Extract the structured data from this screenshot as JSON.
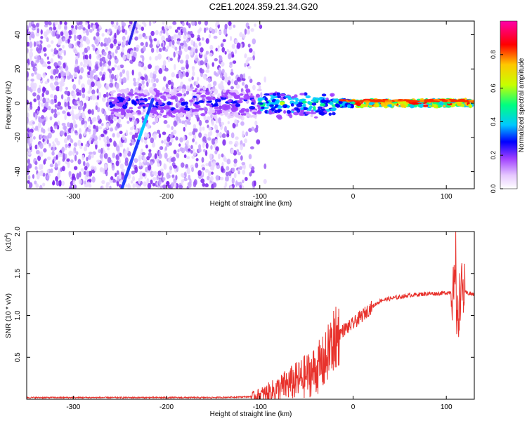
{
  "figure_title": "C2E1.2024.359.21.34.G20",
  "chart_data": [
    {
      "type": "heatmap",
      "title": "C2E1.2024.359.21.34.G20",
      "xlabel": "Height of straight line (km)",
      "ylabel": "Frequency (Hz)",
      "xlim": [
        -350,
        130
      ],
      "ylim": [
        -50,
        48
      ],
      "xticks": [
        -300,
        -200,
        -100,
        0,
        100
      ],
      "yticks": [
        -40,
        -20,
        0,
        20,
        40
      ],
      "colorbar": {
        "label": "Normalized spectral amplitude",
        "range": [
          0,
          1
        ],
        "ticks": [
          "0.0",
          "0.2",
          "0.4",
          "0.6",
          "0.8"
        ],
        "colors": [
          "#ffffff",
          "#e6c8ff",
          "#a040ff",
          "#0000ff",
          "#00c8ff",
          "#00ff80",
          "#c8ff00",
          "#ffc800",
          "#ff0000",
          "#ff00aa"
        ]
      },
      "features": {
        "noise_band_x": [
          -350,
          -100
        ],
        "signal_track_freq_hz": 0,
        "diagonal_trace": {
          "x": [
            -248,
            -215
          ],
          "freq": [
            -50,
            2
          ]
        },
        "second_trace": {
          "x": [
            -240,
            -233
          ],
          "freq": [
            35,
            48
          ]
        }
      },
      "colors": {
        "background_noise": "#7a3cf0",
        "peak": "#ff0000",
        "mid": "#00ff80"
      }
    },
    {
      "type": "line",
      "xlabel": "Height of straight line (km)",
      "ylabel": "SNR (10 * v/v)",
      "y_multiplier": "(x10",
      "y_multiplier_exp": "4",
      "y_multiplier_close": ")",
      "xlim": [
        -350,
        130
      ],
      "ylim": [
        0,
        2.0
      ],
      "xticks": [
        -300,
        -200,
        -100,
        0,
        100
      ],
      "yticks": [
        "0.5",
        "1.0",
        "1.5",
        "2.0"
      ],
      "series": [
        {
          "color": "#e8322c",
          "x": [
            -350,
            -300,
            -250,
            -200,
            -150,
            -110,
            -100,
            -90,
            -80,
            -70,
            -60,
            -50,
            -40,
            -30,
            -25,
            -20,
            -15,
            -10,
            -5,
            0,
            10,
            20,
            30,
            40,
            50,
            60,
            70,
            80,
            90,
            100,
            105,
            110,
            112,
            115,
            120,
            130
          ],
          "y": [
            0.02,
            0.02,
            0.02,
            0.02,
            0.02,
            0.03,
            0.05,
            0.08,
            0.12,
            0.18,
            0.22,
            0.28,
            0.35,
            0.45,
            0.6,
            0.7,
            0.78,
            0.83,
            0.86,
            0.9,
            1.0,
            1.1,
            1.18,
            1.2,
            1.22,
            1.24,
            1.25,
            1.26,
            1.26,
            1.27,
            1.28,
            1.25,
            0.9,
            1.3,
            1.27,
            1.25
          ]
        }
      ]
    }
  ]
}
